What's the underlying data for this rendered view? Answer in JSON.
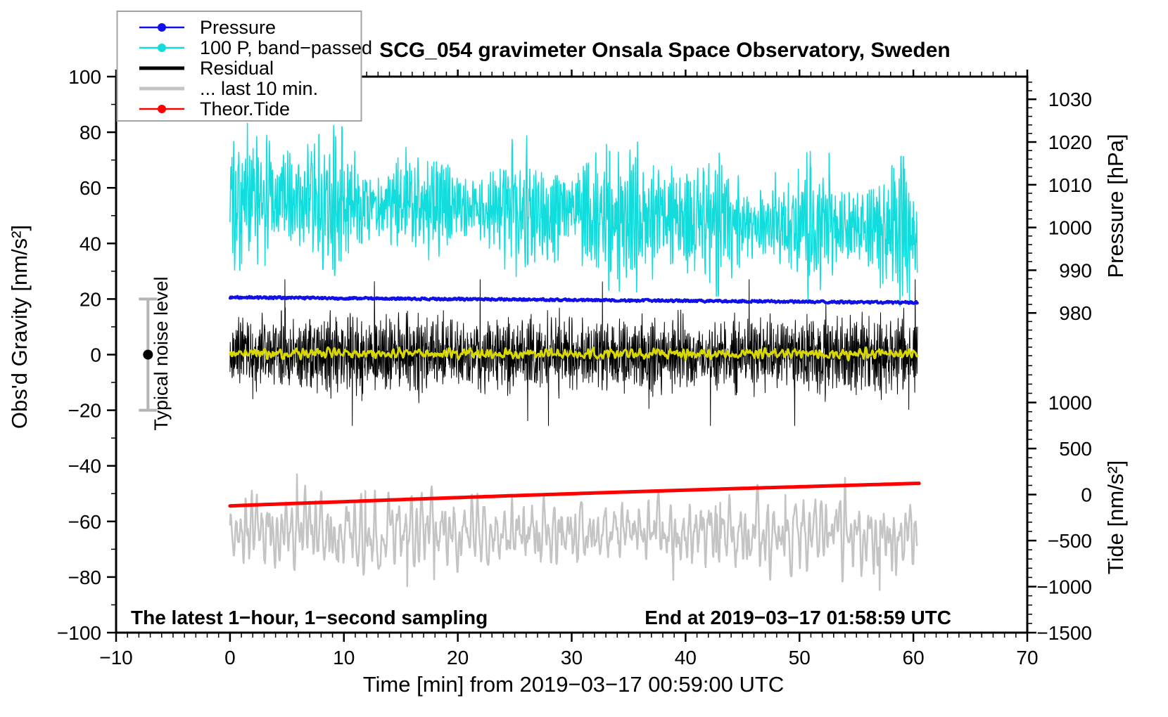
{
  "title": "SCG_054 gravimeter Onsala Space Observatory, Sweden",
  "annotations": {
    "sampling_note": "The latest 1−hour, 1−second sampling",
    "end_time_note": "End at 2019−03−17 01:58:59 UTC",
    "noise_marker_label": "Typical noise level"
  },
  "chart_data": {
    "type": "line",
    "grid": false,
    "legend_position": "top-left",
    "x_axis": {
      "label": "Time [min] from 2019−03−17 00:59:00 UTC",
      "range": [
        -10,
        70
      ],
      "major_tick_values": [
        -10,
        0,
        10,
        20,
        30,
        40,
        50,
        60,
        70
      ],
      "major_tick_labels": [
        "−10",
        "0",
        "10",
        "20",
        "30",
        "40",
        "50",
        "60",
        "70"
      ],
      "minor_step": 1
    },
    "left_axis": {
      "label": "Obs'd Gravity [nm/s²]",
      "range": [
        -100,
        100
      ],
      "major_tick_values": [
        100,
        80,
        60,
        40,
        20,
        0,
        -20,
        -40,
        -60,
        -80,
        -100
      ],
      "major_tick_labels": [
        "100",
        "80",
        "60",
        "40",
        "20",
        "0",
        "−20",
        "−40",
        "−60",
        "−80",
        "−100"
      ],
      "minor_step": 10
    },
    "pressure_axis": {
      "label": "Pressure [hPa]",
      "side": "right-top",
      "frame_range": [
        1035.3,
        905.2
      ],
      "major_tick_values": [
        1030,
        1020,
        1010,
        1000,
        990,
        980
      ],
      "major_tick_labels": [
        "1030",
        "1020",
        "1010",
        "1000",
        "990",
        "980"
      ],
      "minor_step": 2
    },
    "tide_axis": {
      "label": "Tide [nm/s²]",
      "side": "right-bottom",
      "frame_range": [
        4540,
        -1500
      ],
      "major_tick_values": [
        1000,
        500,
        0,
        -500,
        -1000,
        -1500
      ],
      "major_tick_labels": [
        "1000",
        "500",
        "0",
        "−500",
        "−1000",
        "−1500"
      ],
      "minor_step": 100
    },
    "legend": {
      "entries": [
        {
          "id": "pressure",
          "label": "Pressure",
          "color": "#1010e8",
          "line_width": 2.5,
          "marker": "dot"
        },
        {
          "id": "band_passed",
          "label": "100 P, band−passed",
          "color": "#12dcdc",
          "line_width": 2.5,
          "marker": "dot"
        },
        {
          "id": "residual",
          "label": "Residual",
          "color": "#000000",
          "line_width": 5,
          "marker": "none"
        },
        {
          "id": "residual_last10",
          "label": "... last 10 min.",
          "color": "#c4c4c4",
          "line_width": 5,
          "marker": "none"
        },
        {
          "id": "theor_tide",
          "label": "Theor.Tide",
          "color": "#ff0000",
          "line_width": 2.5,
          "marker": "dot"
        }
      ]
    },
    "noise_marker": {
      "x": -7.2,
      "value": 0,
      "half_range": 20,
      "bar_color": "#b4b4b4",
      "dot_color": "#000000"
    },
    "draw_order": [
      "residual_last10",
      "theor_tide",
      "band_passed",
      "residual",
      "residual_smooth",
      "pressure"
    ],
    "series": [
      {
        "id": "band_passed",
        "label": "100 P, band−passed",
        "color": "#12dcdc",
        "width": 1.5,
        "kind": "osc-noise",
        "value_axis": "gravity",
        "x_start": 0,
        "x_end": 60.35,
        "dt": 0.025,
        "center_start": 57.5,
        "center_end": 44.0,
        "std": 9.0,
        "clip_dev": 27,
        "spike_prob": 0.006,
        "spike_gain": 2.4,
        "ar": [
          0.95,
          -0.62
        ],
        "seed": 101
      },
      {
        "id": "residual",
        "label": "Residual",
        "color": "#000000",
        "width": 1,
        "kind": "osc-noise",
        "value_axis": "gravity",
        "x_start": 0,
        "x_end": 60.35,
        "dt": 0.02,
        "center_start": 0.3,
        "center_end": 0.2,
        "std": 6.3,
        "clip_lo": -25.5,
        "clip_hi": 27,
        "spike_prob": 0.009,
        "spike_add": [
          13,
          15
        ],
        "ar": [
          0.6,
          -0.5
        ],
        "seed": 202
      },
      {
        "id": "residual_last10",
        "label": "... last 10 min.",
        "color": "#c4c4c4",
        "width": 2.5,
        "kind": "osc-noise",
        "value_axis": "gravity",
        "x_start": 0,
        "x_end": 60.3,
        "dt": 0.04,
        "center_start": -64.5,
        "center_end": -64.0,
        "std": 6.2,
        "clip_lo": -86,
        "clip_hi": -43,
        "spike_prob": 0.005,
        "spike_add": [
          8,
          14
        ],
        "ar": [
          1.45,
          -0.72
        ],
        "seed": 303
      },
      {
        "id": "residual_smooth",
        "label": "smoothed residual",
        "color": "#d8d800",
        "width": 3,
        "kind": "osc-noise",
        "value_axis": "gravity",
        "x_start": 0,
        "x_end": 60.35,
        "dt": 0.05,
        "center_start": 0.4,
        "center_end": 0.2,
        "std": 0.85,
        "spike_prob": 0,
        "ar": [
          1.1,
          -0.55
        ],
        "seed": 404
      },
      {
        "id": "pressure",
        "label": "Pressure",
        "color": "#1010e8",
        "width": 4,
        "kind": "osc-noise",
        "value_axis": "gravity",
        "x_start": 0,
        "x_end": 60.35,
        "dt": 0.05,
        "center_start": 20.6,
        "center_end": 18.7,
        "std": 0.22,
        "spike_prob": 0,
        "ar": [
          0.3,
          0
        ],
        "seed": 505,
        "pressure_hpa_start": 983.6,
        "pressure_hpa_end": 982.4
      },
      {
        "id": "theor_tide",
        "label": "Theor.Tide",
        "color": "#ff0000",
        "width": 5,
        "kind": "smooth-line",
        "value_axis": "gravity",
        "x_start": 0,
        "x_end": 60.4,
        "dt": 0.5,
        "center_start": -54.4,
        "center_end": -46.3,
        "curve": 0.35,
        "tide_value_start": -130,
        "tide_value_end": 115,
        "seed": 0
      }
    ]
  }
}
